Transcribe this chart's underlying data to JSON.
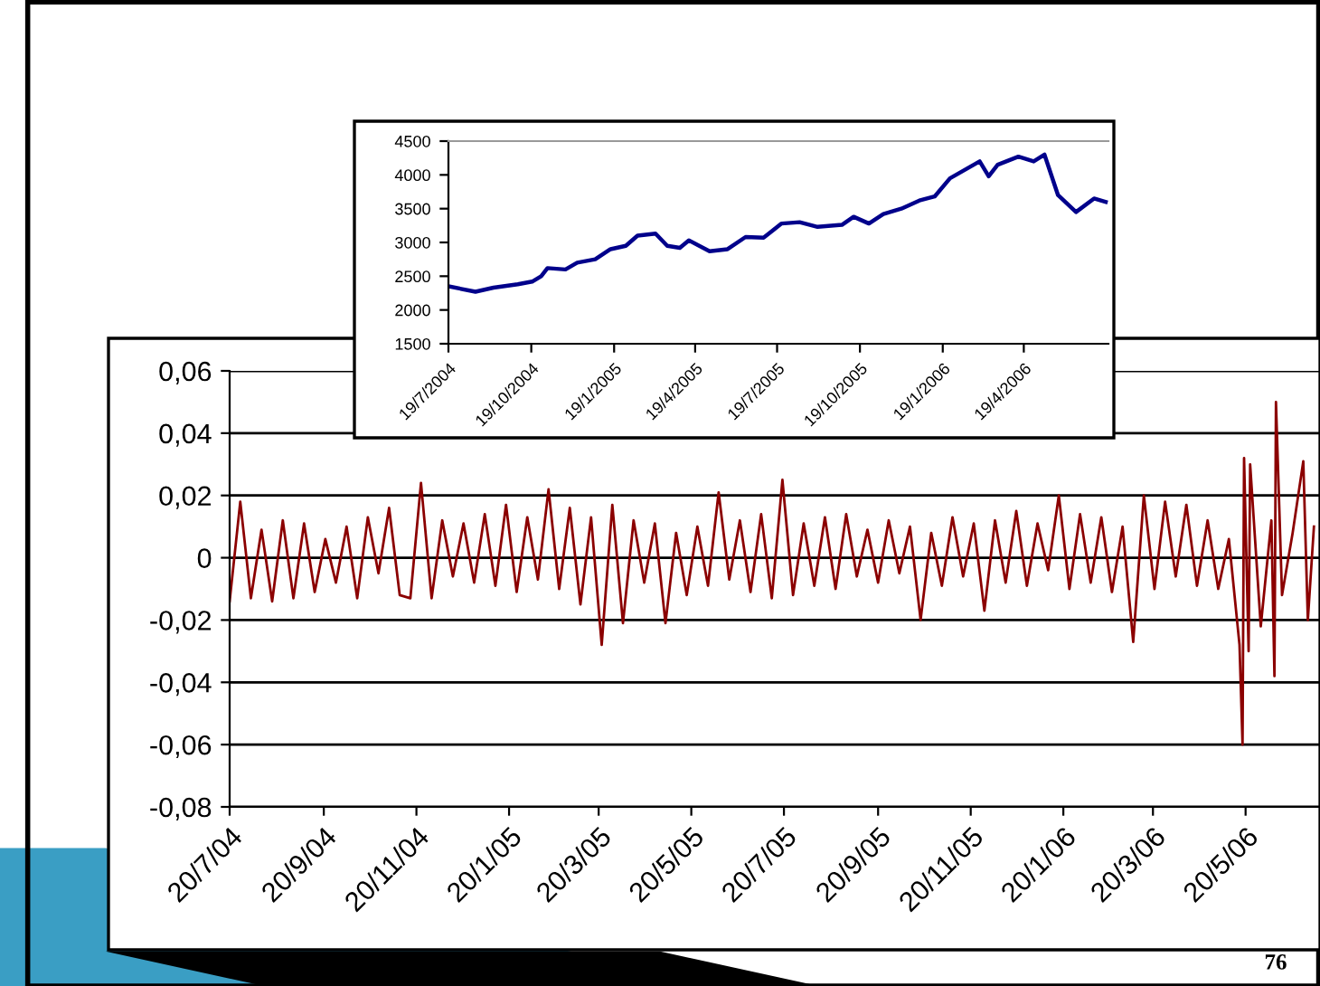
{
  "chart_data": [
    {
      "type": "line",
      "annotations": [
        "76"
      ],
      "grid": "y",
      "ylim": [
        -0.08,
        0.06
      ],
      "yticks": [
        {
          "value": -0.08,
          "label": "-0,08"
        },
        {
          "value": -0.06,
          "label": "-0,06"
        },
        {
          "value": -0.04,
          "label": "-0,04"
        },
        {
          "value": -0.02,
          "label": "-0,02"
        },
        0,
        {
          "value": 0.02,
          "label": "0,02"
        },
        {
          "value": 0.04,
          "label": "0,04"
        },
        {
          "value": 0.06,
          "label": "0,06"
        }
      ],
      "xlim": [
        "2004-07-20",
        "2006-07-08"
      ],
      "xticks": [
        {
          "value": "2004-07-20",
          "label": "20/7/04"
        },
        {
          "value": "2004-09-20",
          "label": "20/9/04"
        },
        {
          "value": "2004-11-20",
          "label": "20/11/04"
        },
        {
          "value": "2005-01-20",
          "label": "20/1/05"
        },
        {
          "value": "2005-03-20",
          "label": "20/3/05"
        },
        {
          "value": "2005-05-20",
          "label": "20/5/05"
        },
        {
          "value": "2005-07-20",
          "label": "20/7/05"
        },
        {
          "value": "2005-09-20",
          "label": "20/9/05"
        },
        {
          "value": "2005-11-20",
          "label": "20/11/05"
        },
        {
          "value": "2006-01-20",
          "label": "20/1/06"
        },
        {
          "value": "2006-03-20",
          "label": "20/3/06"
        },
        {
          "value": "2006-05-20",
          "label": "20/5/06"
        }
      ],
      "series": [
        {
          "color": "#8b0000",
          "x": [
            "2004-07-20",
            "2004-07-27",
            "2004-08-03",
            "2004-08-10",
            "2004-08-17",
            "2004-08-24",
            "2004-08-31",
            "2004-09-07",
            "2004-09-14",
            "2004-09-21",
            "2004-09-28",
            "2004-10-05",
            "2004-10-12",
            "2004-10-19",
            "2004-10-26",
            "2004-11-02",
            "2004-11-09",
            "2004-11-16",
            "2004-11-23",
            "2004-11-30",
            "2004-12-07",
            "2004-12-14",
            "2004-12-21",
            "2004-12-28",
            "2005-01-04",
            "2005-01-11",
            "2005-01-18",
            "2005-01-25",
            "2005-02-01",
            "2005-02-08",
            "2005-02-15",
            "2005-02-22",
            "2005-03-01",
            "2005-03-08",
            "2005-03-15",
            "2005-03-22",
            "2005-03-29",
            "2005-04-05",
            "2005-04-12",
            "2005-04-19",
            "2005-04-26",
            "2005-05-03",
            "2005-05-10",
            "2005-05-17",
            "2005-05-24",
            "2005-05-31",
            "2005-06-07",
            "2005-06-14",
            "2005-06-21",
            "2005-06-28",
            "2005-07-05",
            "2005-07-12",
            "2005-07-19",
            "2005-07-26",
            "2005-08-02",
            "2005-08-09",
            "2005-08-16",
            "2005-08-23",
            "2005-08-30",
            "2005-09-06",
            "2005-09-13",
            "2005-09-20",
            "2005-09-27",
            "2005-10-04",
            "2005-10-11",
            "2005-10-18",
            "2005-10-25",
            "2005-11-01",
            "2005-11-08",
            "2005-11-15",
            "2005-11-22",
            "2005-11-29",
            "2005-12-06",
            "2005-12-13",
            "2005-12-20",
            "2005-12-27",
            "2006-01-03",
            "2006-01-10",
            "2006-01-17",
            "2006-01-24",
            "2006-01-31",
            "2006-02-07",
            "2006-02-14",
            "2006-02-21",
            "2006-02-28",
            "2006-03-07",
            "2006-03-14",
            "2006-03-21",
            "2006-03-28",
            "2006-04-04",
            "2006-04-11",
            "2006-04-18",
            "2006-04-25",
            "2006-05-02",
            "2006-05-09",
            "2006-05-16",
            "2006-05-18",
            "2006-05-19",
            "2006-05-22",
            "2006-05-23",
            "2006-05-30",
            "2006-06-06",
            "2006-06-08",
            "2006-06-09",
            "2006-06-13",
            "2006-06-20",
            "2006-06-27",
            "2006-06-30",
            "2006-07-04"
          ],
          "values": [
            -0.014,
            0.018,
            -0.013,
            0.009,
            -0.014,
            0.012,
            -0.013,
            0.011,
            -0.011,
            0.006,
            -0.008,
            0.01,
            -0.013,
            0.013,
            -0.005,
            0.016,
            -0.012,
            -0.013,
            0.024,
            -0.013,
            0.012,
            -0.006,
            0.011,
            -0.008,
            0.014,
            -0.009,
            0.017,
            -0.011,
            0.013,
            -0.007,
            0.022,
            -0.01,
            0.016,
            -0.015,
            0.013,
            -0.028,
            0.017,
            -0.021,
            0.012,
            -0.008,
            0.011,
            -0.021,
            0.008,
            -0.012,
            0.01,
            -0.009,
            0.021,
            -0.007,
            0.012,
            -0.011,
            0.014,
            -0.013,
            0.025,
            -0.012,
            0.011,
            -0.009,
            0.013,
            -0.01,
            0.014,
            -0.006,
            0.009,
            -0.008,
            0.012,
            -0.005,
            0.01,
            -0.02,
            0.008,
            -0.009,
            0.013,
            -0.006,
            0.011,
            -0.017,
            0.012,
            -0.008,
            0.015,
            -0.009,
            0.011,
            -0.004,
            0.02,
            -0.01,
            0.014,
            -0.008,
            0.013,
            -0.011,
            0.01,
            -0.027,
            0.02,
            -0.01,
            0.018,
            -0.006,
            0.017,
            -0.009,
            0.012,
            -0.01,
            0.006,
            -0.028,
            -0.06,
            0.032,
            -0.03,
            0.03,
            -0.022,
            0.012,
            -0.038,
            0.05,
            -0.012,
            0.008,
            0.031,
            -0.02,
            0.01
          ]
        }
      ]
    },
    {
      "type": "line",
      "ylim": [
        1500,
        4500
      ],
      "yticks": [
        1500,
        2000,
        2500,
        3000,
        3500,
        4000,
        4500
      ],
      "xlim": [
        "2004-07-19",
        "2006-07-22"
      ],
      "xticks": [
        {
          "value": "2004-07-19",
          "label": "19/7/2004"
        },
        {
          "value": "2004-10-19",
          "label": "19/10/2004"
        },
        {
          "value": "2005-01-19",
          "label": "19/1/2005"
        },
        {
          "value": "2005-04-19",
          "label": "19/4/2005"
        },
        {
          "value": "2005-07-19",
          "label": "19/7/2005"
        },
        {
          "value": "2005-10-19",
          "label": "19/10/2005"
        },
        {
          "value": "2006-01-19",
          "label": "19/1/2006"
        },
        {
          "value": "2006-04-19",
          "label": "19/4/2006"
        }
      ],
      "series": [
        {
          "color": "#00008b",
          "x": [
            "2004-07-19",
            "2004-08-18",
            "2004-09-07",
            "2004-10-04",
            "2004-10-20",
            "2004-10-30",
            "2004-11-06",
            "2004-11-26",
            "2004-12-09",
            "2004-12-29",
            "2005-01-15",
            "2005-02-01",
            "2005-02-14",
            "2005-03-06",
            "2005-03-19",
            "2005-04-02",
            "2005-04-12",
            "2005-05-05",
            "2005-05-25",
            "2005-06-14",
            "2005-07-04",
            "2005-07-24",
            "2005-08-13",
            "2005-09-02",
            "2005-09-29",
            "2005-10-12",
            "2005-10-29",
            "2005-11-14",
            "2005-12-04",
            "2005-12-24",
            "2006-01-10",
            "2006-01-27",
            "2006-03-01",
            "2006-03-11",
            "2006-03-21",
            "2006-04-13",
            "2006-04-30",
            "2006-05-12",
            "2006-05-27",
            "2006-06-16",
            "2006-07-06",
            "2006-07-19"
          ],
          "values": [
            2350,
            2270,
            2330,
            2380,
            2420,
            2500,
            2620,
            2600,
            2700,
            2750,
            2900,
            2950,
            3100,
            3130,
            2950,
            2920,
            3030,
            2870,
            2900,
            3080,
            3070,
            3280,
            3300,
            3230,
            3260,
            3380,
            3280,
            3420,
            3500,
            3620,
            3680,
            3950,
            4200,
            3980,
            4150,
            4270,
            4200,
            4300,
            3700,
            3450,
            3650,
            3600
          ]
        }
      ]
    }
  ]
}
